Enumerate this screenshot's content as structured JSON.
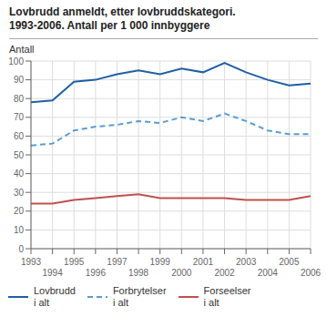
{
  "chart_data": {
    "type": "line",
    "title": "Lovbrudd anmeldt, etter lovbruddskategori.\n1993-2006. Antall per 1 000 innbyggere",
    "ylabel": "Antall",
    "x": [
      1993,
      1994,
      1995,
      1996,
      1997,
      1998,
      1999,
      2000,
      2001,
      2002,
      2003,
      2004,
      2005,
      2006
    ],
    "series": [
      {
        "name": "Lovbrudd\ni alt",
        "color": "#1f5fa6",
        "line_style": "solid",
        "values": [
          78,
          79,
          89,
          90,
          93,
          95,
          93,
          96,
          94,
          99,
          94,
          90,
          87,
          88
        ]
      },
      {
        "name": "Forbrytelser\ni alt",
        "color": "#5b9bd5",
        "line_style": "dashed",
        "values": [
          55,
          56,
          63,
          65,
          66,
          68,
          67,
          70,
          68,
          72,
          68,
          63,
          61,
          61
        ]
      },
      {
        "name": "Forseelser\ni alt",
        "color": "#c0504d",
        "line_style": "solid",
        "values": [
          24,
          24,
          26,
          27,
          28,
          29,
          27,
          27,
          27,
          27,
          26,
          26,
          26,
          28
        ]
      }
    ],
    "xlim": [
      1993,
      2006
    ],
    "xticks": [
      1993,
      1994,
      1995,
      1996,
      1997,
      1998,
      1999,
      2000,
      2001,
      2002,
      2003,
      2004,
      2005,
      2006
    ],
    "ylim": [
      0,
      100
    ],
    "yticks": [
      0,
      10,
      20,
      30,
      40,
      50,
      60,
      70,
      80,
      90,
      100
    ],
    "grid": true,
    "legend": "lower left"
  }
}
